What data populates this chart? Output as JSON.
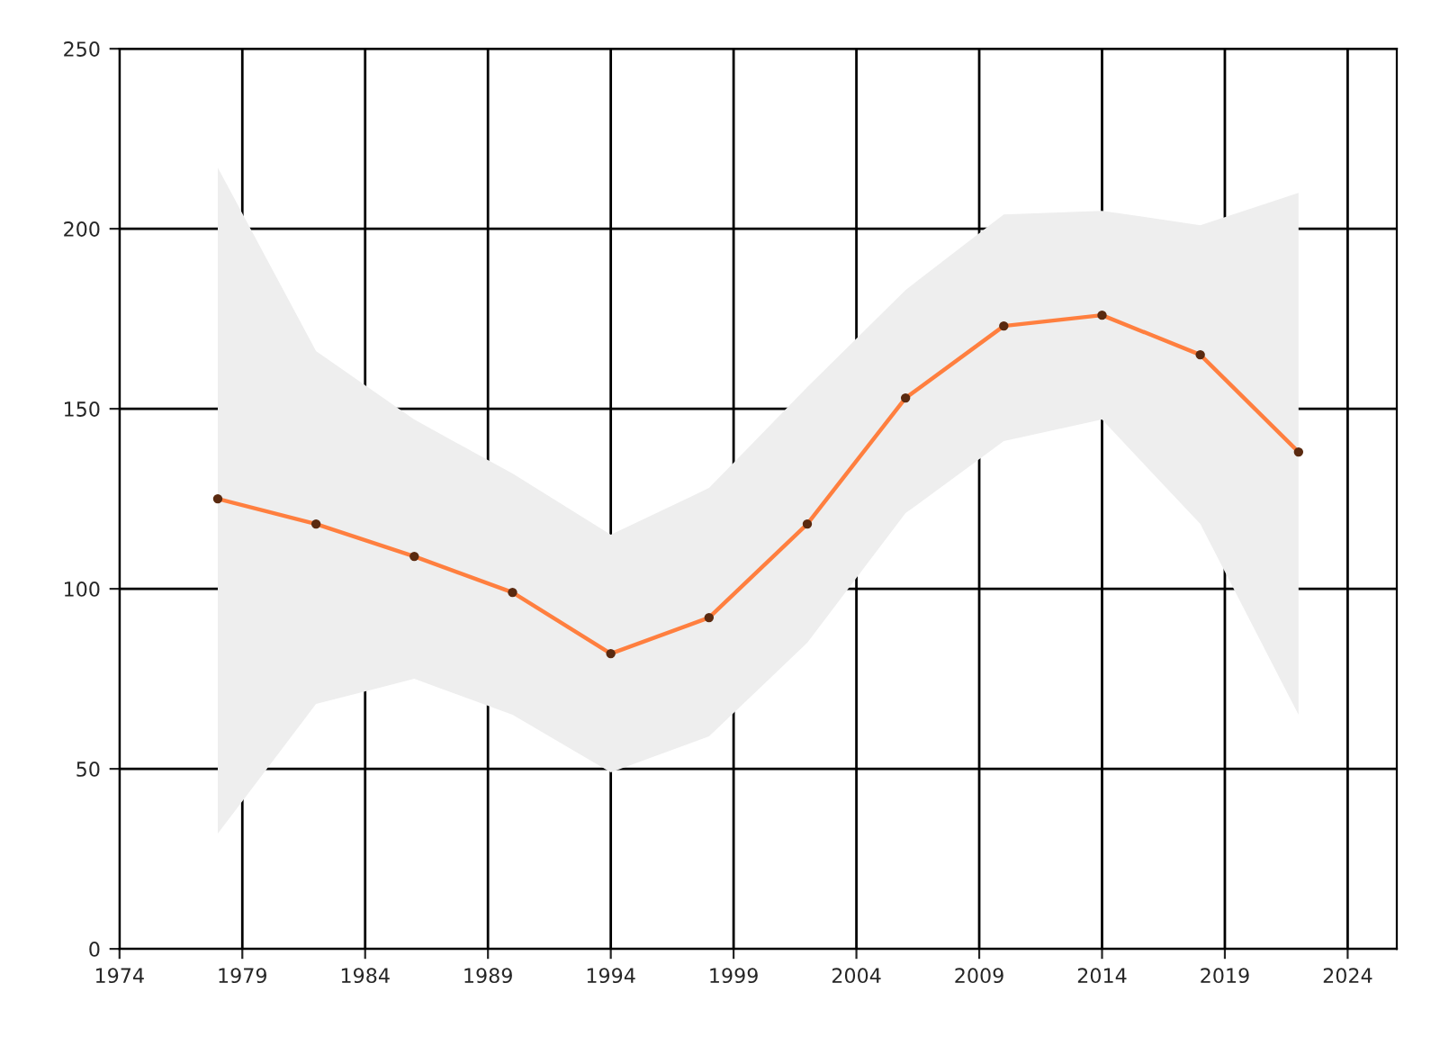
{
  "chart_data": {
    "type": "line",
    "x": [
      1978,
      1982,
      1986,
      1990,
      1994,
      1998,
      2002,
      2006,
      2010,
      2014,
      2018,
      2022
    ],
    "series": [
      {
        "color": "#ff7f3f",
        "values": [
          125,
          118,
          109,
          99,
          82,
          92,
          118,
          153,
          173,
          176,
          165,
          138
        ],
        "lower": [
          32,
          68,
          75,
          65,
          49,
          59,
          85,
          121,
          141,
          147,
          118,
          65
        ],
        "upper": [
          217,
          166,
          147,
          132,
          115,
          128,
          156,
          183,
          204,
          205,
          201,
          210
        ]
      }
    ],
    "xlim": [
      1974,
      2026
    ],
    "ylim": [
      0,
      250
    ],
    "xticks": [
      1974,
      1979,
      1984,
      1989,
      1994,
      1999,
      2004,
      2009,
      2014,
      2019,
      2024
    ],
    "yticks": [
      0,
      50,
      100,
      150,
      200,
      250
    ],
    "grid": true,
    "marker": "circle",
    "line_style": "solid"
  }
}
